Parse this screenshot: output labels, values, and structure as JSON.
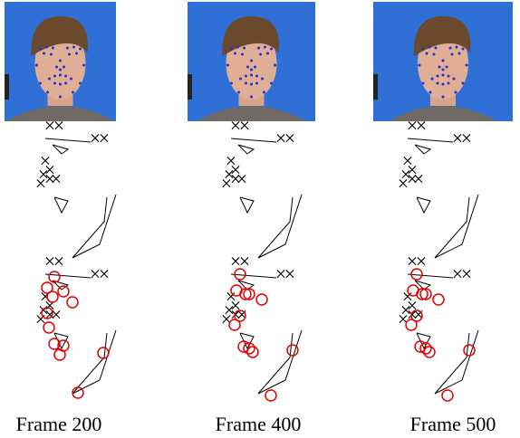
{
  "figure": {
    "panels": [
      {
        "caption": "Frame 200"
      },
      {
        "caption": "Frame 400"
      },
      {
        "caption": "Frame 500"
      }
    ]
  }
}
